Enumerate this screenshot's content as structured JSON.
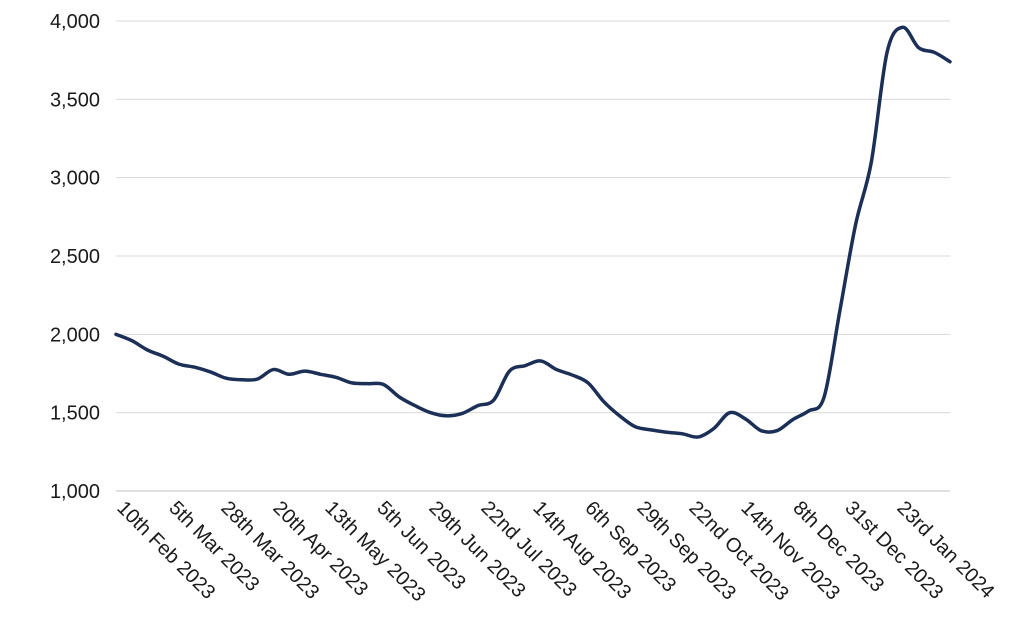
{
  "chart_data": {
    "type": "line",
    "title": "",
    "xlabel": "",
    "ylabel": "",
    "ylim": [
      1000,
      4000
    ],
    "y_ticks": [
      1000,
      1500,
      2000,
      2500,
      3000,
      3500,
      4000
    ],
    "y_tick_labels": [
      "1,000",
      "1,500",
      "2,000",
      "2,500",
      "3,000",
      "3,500",
      "4,000"
    ],
    "x_tick_labels": [
      "10th Feb 2023",
      "5th Mar 2023",
      "28th Mar 2023",
      "20th Apr 2023",
      "13th May 2023",
      "5th Jun 2023",
      "29th Jun 2023",
      "22nd Jul 2023",
      "14th Aug 2023",
      "6th Sep 2023",
      "29th Sep 2023",
      "22nd Oct 2023",
      "14th Nov 2023",
      "8th Dec 2023",
      "31st Dec 2023",
      "23rd Jan 2024"
    ],
    "grid": true,
    "line_color": "#1b2f57",
    "grid_color": "#d9d9d9",
    "series": [
      {
        "values": [
          2000,
          1960,
          1900,
          1860,
          1810,
          1790,
          1760,
          1720,
          1710,
          1715,
          1775,
          1745,
          1765,
          1745,
          1725,
          1690,
          1685,
          1680,
          1600,
          1545,
          1500,
          1480,
          1495,
          1545,
          1580,
          1765,
          1800,
          1830,
          1775,
          1740,
          1690,
          1570,
          1480,
          1410,
          1390,
          1375,
          1365,
          1345,
          1400,
          1500,
          1460,
          1385,
          1385,
          1455,
          1510,
          1600,
          2150,
          2700,
          3100,
          3800,
          3960,
          3830,
          3800,
          3740
        ]
      }
    ]
  }
}
